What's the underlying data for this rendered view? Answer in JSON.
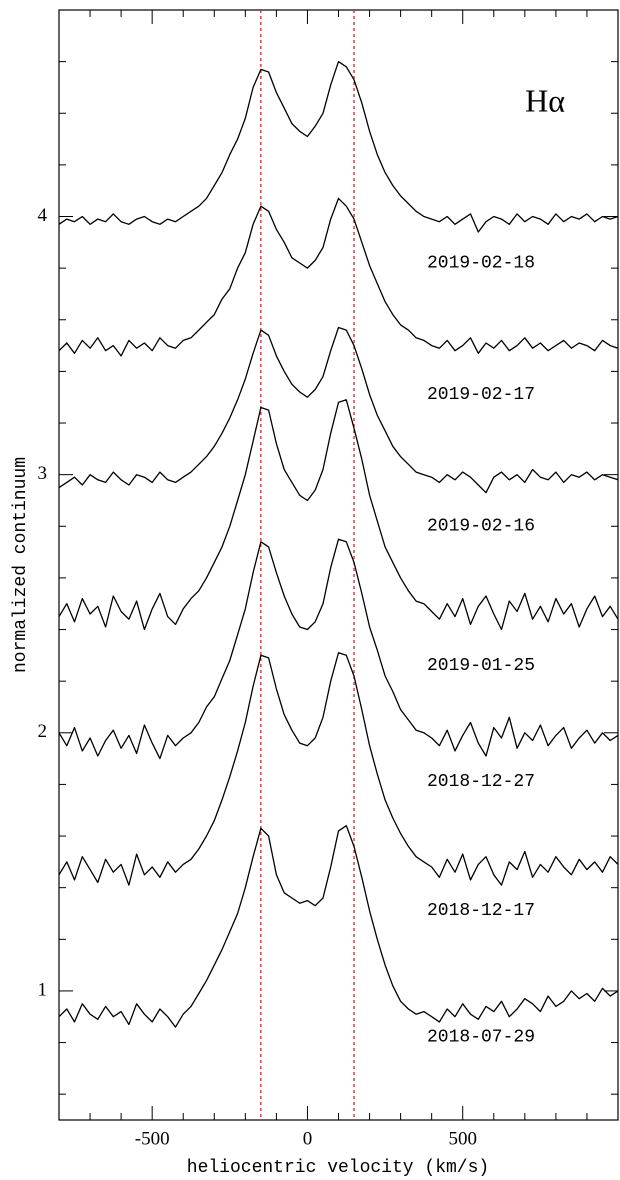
{
  "chart_data": {
    "type": "line",
    "label": "Hα",
    "xlabel": "heliocentric velocity (km/s)",
    "ylabel": "normalized continuum",
    "xlim": [
      -800,
      1000
    ],
    "ylim": [
      0.5,
      4.8
    ],
    "xticks": [
      -500,
      0,
      500
    ],
    "yticks": [
      1,
      2,
      3,
      4
    ],
    "xminor_ticks": [
      -700,
      -600,
      -400,
      -300,
      -200,
      -100,
      100,
      200,
      300,
      400,
      600,
      700,
      800,
      900
    ],
    "yminor_ticks": [
      0.6,
      0.8,
      1.2,
      1.4,
      1.6,
      1.8,
      2.2,
      2.4,
      2.6,
      2.8,
      3.2,
      3.4,
      3.6,
      3.8,
      4.2,
      4.4,
      4.6
    ],
    "vlines": [
      -150,
      150
    ],
    "vline_color": "#e02020",
    "x": [
      -800,
      -775,
      -750,
      -725,
      -700,
      -675,
      -650,
      -625,
      -600,
      -575,
      -550,
      -525,
      -500,
      -475,
      -450,
      -425,
      -400,
      -375,
      -350,
      -325,
      -300,
      -275,
      -250,
      -225,
      -200,
      -175,
      -150,
      -125,
      -100,
      -75,
      -50,
      -25,
      0,
      25,
      50,
      75,
      100,
      125,
      150,
      175,
      200,
      225,
      250,
      275,
      300,
      325,
      350,
      375,
      400,
      425,
      450,
      475,
      500,
      525,
      550,
      575,
      600,
      625,
      650,
      675,
      700,
      725,
      750,
      775,
      800,
      825,
      850,
      875,
      900,
      925,
      950,
      975,
      1000
    ],
    "series": [
      {
        "name": "2019-02-18",
        "color": "#000000",
        "values": [
          3.97,
          3.99,
          3.98,
          4.0,
          3.97,
          3.99,
          3.98,
          4.01,
          3.98,
          3.97,
          3.99,
          4.0,
          3.98,
          3.97,
          3.99,
          3.98,
          4.0,
          4.02,
          4.04,
          4.07,
          4.12,
          4.17,
          4.24,
          4.3,
          4.38,
          4.5,
          4.57,
          4.56,
          4.48,
          4.42,
          4.36,
          4.33,
          4.31,
          4.35,
          4.4,
          4.51,
          4.6,
          4.58,
          4.53,
          4.44,
          4.33,
          4.24,
          4.17,
          4.12,
          4.08,
          4.05,
          4.02,
          4.0,
          3.99,
          3.98,
          4.0,
          3.97,
          3.99,
          4.01,
          3.94,
          3.98,
          4.0,
          3.99,
          3.97,
          4.01,
          3.98,
          4.0,
          3.99,
          3.97,
          4.01,
          3.98,
          4.0,
          3.99,
          4.01,
          3.98,
          4.0,
          3.99,
          4.0
        ]
      },
      {
        "name": "2019-02-17",
        "color": "#000000",
        "values": [
          3.48,
          3.51,
          3.47,
          3.52,
          3.49,
          3.53,
          3.48,
          3.5,
          3.46,
          3.52,
          3.49,
          3.51,
          3.48,
          3.53,
          3.5,
          3.49,
          3.52,
          3.53,
          3.56,
          3.59,
          3.62,
          3.68,
          3.72,
          3.8,
          3.86,
          3.97,
          4.04,
          4.02,
          3.95,
          3.9,
          3.84,
          3.82,
          3.8,
          3.83,
          3.88,
          3.99,
          4.07,
          4.04,
          3.99,
          3.9,
          3.81,
          3.74,
          3.67,
          3.62,
          3.58,
          3.56,
          3.53,
          3.52,
          3.5,
          3.49,
          3.52,
          3.48,
          3.5,
          3.53,
          3.47,
          3.51,
          3.49,
          3.52,
          3.48,
          3.5,
          3.53,
          3.49,
          3.51,
          3.48,
          3.5,
          3.52,
          3.49,
          3.51,
          3.5,
          3.48,
          3.52,
          3.5,
          3.49
        ]
      },
      {
        "name": "2019-02-16",
        "color": "#000000",
        "values": [
          2.95,
          2.97,
          2.99,
          2.96,
          3.0,
          2.98,
          2.97,
          3.01,
          2.98,
          2.96,
          3.0,
          2.99,
          2.97,
          3.01,
          2.98,
          2.97,
          2.99,
          3.01,
          3.04,
          3.07,
          3.11,
          3.16,
          3.22,
          3.29,
          3.37,
          3.47,
          3.56,
          3.54,
          3.46,
          3.4,
          3.35,
          3.32,
          3.3,
          3.33,
          3.38,
          3.48,
          3.57,
          3.56,
          3.5,
          3.41,
          3.31,
          3.23,
          3.17,
          3.11,
          3.07,
          3.04,
          3.01,
          3.0,
          2.99,
          2.97,
          3.0,
          2.98,
          3.01,
          2.99,
          2.96,
          2.93,
          2.99,
          3.01,
          2.98,
          3.0,
          2.97,
          3.02,
          2.99,
          2.98,
          3.01,
          2.97,
          3.0,
          2.99,
          3.01,
          2.98,
          3.0,
          2.99,
          2.98
        ]
      },
      {
        "name": "2019-01-25",
        "color": "#000000",
        "values": [
          2.45,
          2.5,
          2.43,
          2.52,
          2.46,
          2.49,
          2.41,
          2.53,
          2.47,
          2.44,
          2.51,
          2.4,
          2.48,
          2.54,
          2.45,
          2.42,
          2.48,
          2.52,
          2.55,
          2.6,
          2.66,
          2.72,
          2.8,
          2.9,
          3.0,
          3.13,
          3.26,
          3.25,
          3.12,
          3.02,
          2.97,
          2.92,
          2.9,
          2.94,
          3.02,
          3.16,
          3.28,
          3.29,
          3.18,
          3.06,
          2.92,
          2.82,
          2.72,
          2.66,
          2.6,
          2.55,
          2.51,
          2.5,
          2.47,
          2.44,
          2.5,
          2.45,
          2.52,
          2.42,
          2.49,
          2.53,
          2.46,
          2.4,
          2.51,
          2.47,
          2.54,
          2.44,
          2.49,
          2.43,
          2.52,
          2.46,
          2.5,
          2.41,
          2.48,
          2.53,
          2.45,
          2.49,
          2.44
        ]
      },
      {
        "name": "2018-12-27",
        "color": "#000000",
        "values": [
          2.0,
          1.95,
          2.02,
          1.93,
          1.98,
          1.91,
          1.97,
          2.01,
          1.94,
          1.99,
          1.92,
          2.03,
          1.96,
          1.9,
          1.99,
          1.95,
          1.98,
          2.0,
          2.04,
          2.1,
          2.14,
          2.21,
          2.28,
          2.38,
          2.48,
          2.62,
          2.74,
          2.72,
          2.62,
          2.53,
          2.46,
          2.41,
          2.4,
          2.43,
          2.5,
          2.64,
          2.75,
          2.74,
          2.66,
          2.54,
          2.41,
          2.32,
          2.22,
          2.16,
          2.09,
          2.05,
          2.01,
          2.0,
          1.98,
          1.95,
          2.01,
          1.93,
          1.99,
          2.04,
          1.96,
          1.91,
          2.02,
          1.98,
          2.06,
          1.94,
          2.0,
          1.97,
          2.03,
          1.95,
          1.99,
          2.02,
          1.94,
          1.98,
          2.01,
          1.96,
          2.0,
          1.97,
          1.99
        ]
      },
      {
        "name": "2018-12-17",
        "color": "#000000",
        "values": [
          1.45,
          1.5,
          1.43,
          1.52,
          1.47,
          1.42,
          1.51,
          1.46,
          1.49,
          1.41,
          1.53,
          1.45,
          1.48,
          1.44,
          1.5,
          1.46,
          1.49,
          1.51,
          1.55,
          1.6,
          1.66,
          1.74,
          1.83,
          1.93,
          2.04,
          2.18,
          2.3,
          2.29,
          2.17,
          2.07,
          2.01,
          1.96,
          1.95,
          1.98,
          2.06,
          2.2,
          2.31,
          2.3,
          2.22,
          2.09,
          1.95,
          1.84,
          1.74,
          1.67,
          1.61,
          1.56,
          1.52,
          1.5,
          1.48,
          1.44,
          1.51,
          1.46,
          1.53,
          1.43,
          1.49,
          1.52,
          1.45,
          1.41,
          1.5,
          1.47,
          1.54,
          1.44,
          1.49,
          1.46,
          1.52,
          1.48,
          1.45,
          1.51,
          1.47,
          1.5,
          1.46,
          1.52,
          1.49
        ]
      },
      {
        "name": "2018-07-29",
        "color": "#000000",
        "values": [
          0.9,
          0.93,
          0.88,
          0.95,
          0.91,
          0.89,
          0.94,
          0.9,
          0.92,
          0.87,
          0.95,
          0.91,
          0.88,
          0.93,
          0.9,
          0.86,
          0.91,
          0.94,
          0.99,
          1.04,
          1.1,
          1.16,
          1.23,
          1.3,
          1.4,
          1.52,
          1.63,
          1.6,
          1.45,
          1.38,
          1.36,
          1.34,
          1.35,
          1.33,
          1.36,
          1.48,
          1.62,
          1.64,
          1.56,
          1.44,
          1.31,
          1.2,
          1.1,
          1.02,
          0.96,
          0.93,
          0.91,
          0.92,
          0.9,
          0.88,
          0.93,
          0.9,
          0.95,
          0.91,
          0.89,
          0.94,
          0.92,
          0.96,
          0.9,
          0.93,
          0.97,
          0.95,
          0.92,
          0.98,
          0.94,
          0.96,
          1.0,
          0.97,
          0.99,
          0.96,
          1.01,
          0.98,
          1.0
        ]
      }
    ]
  }
}
